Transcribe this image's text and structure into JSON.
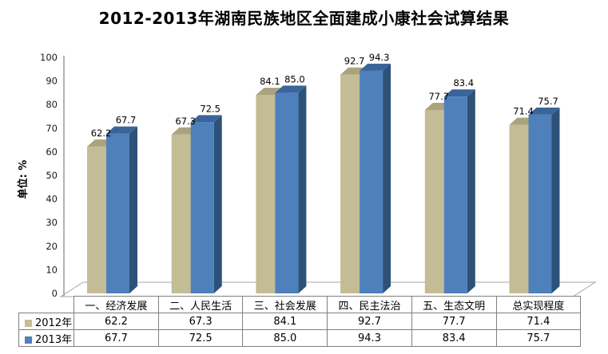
{
  "title": "2012-2013年湖南民族地区全面建成小康社会试算结果",
  "y_axis_label": "单位: %",
  "chart_data": {
    "type": "bar",
    "variant": "3d-clustered-column",
    "title": "2012-2013年湖南民族地区全面建成小康社会试算结果",
    "ylabel": "单位: %",
    "xlabel": "",
    "categories": [
      "一、经济发展",
      "二、人民生活",
      "三、社会发展",
      "四、民主法治",
      "五、生态文明",
      "总实现程度"
    ],
    "series": [
      {
        "name": "2012年",
        "values": [
          62.2,
          67.3,
          84.1,
          92.7,
          77.7,
          71.4
        ],
        "color": "#C3BC95",
        "color_top": "#ABA37D",
        "color_side": "#8F8861"
      },
      {
        "name": "2013年",
        "values": [
          67.7,
          72.5,
          85.0,
          94.3,
          83.4,
          75.7
        ],
        "color": "#4E80BC",
        "color_top": "#3A659B",
        "color_side": "#2E5178"
      }
    ],
    "ylim": [
      0,
      100
    ],
    "ytick_step": 10,
    "grid": false,
    "value_labels_shown": true,
    "value_label_format": "0.1f",
    "legend_position": "bottom-data-table",
    "axis_line_color": "#9A9A9A",
    "floor_outline_color": "#A6A6A6",
    "table_border_color": "#808080"
  }
}
